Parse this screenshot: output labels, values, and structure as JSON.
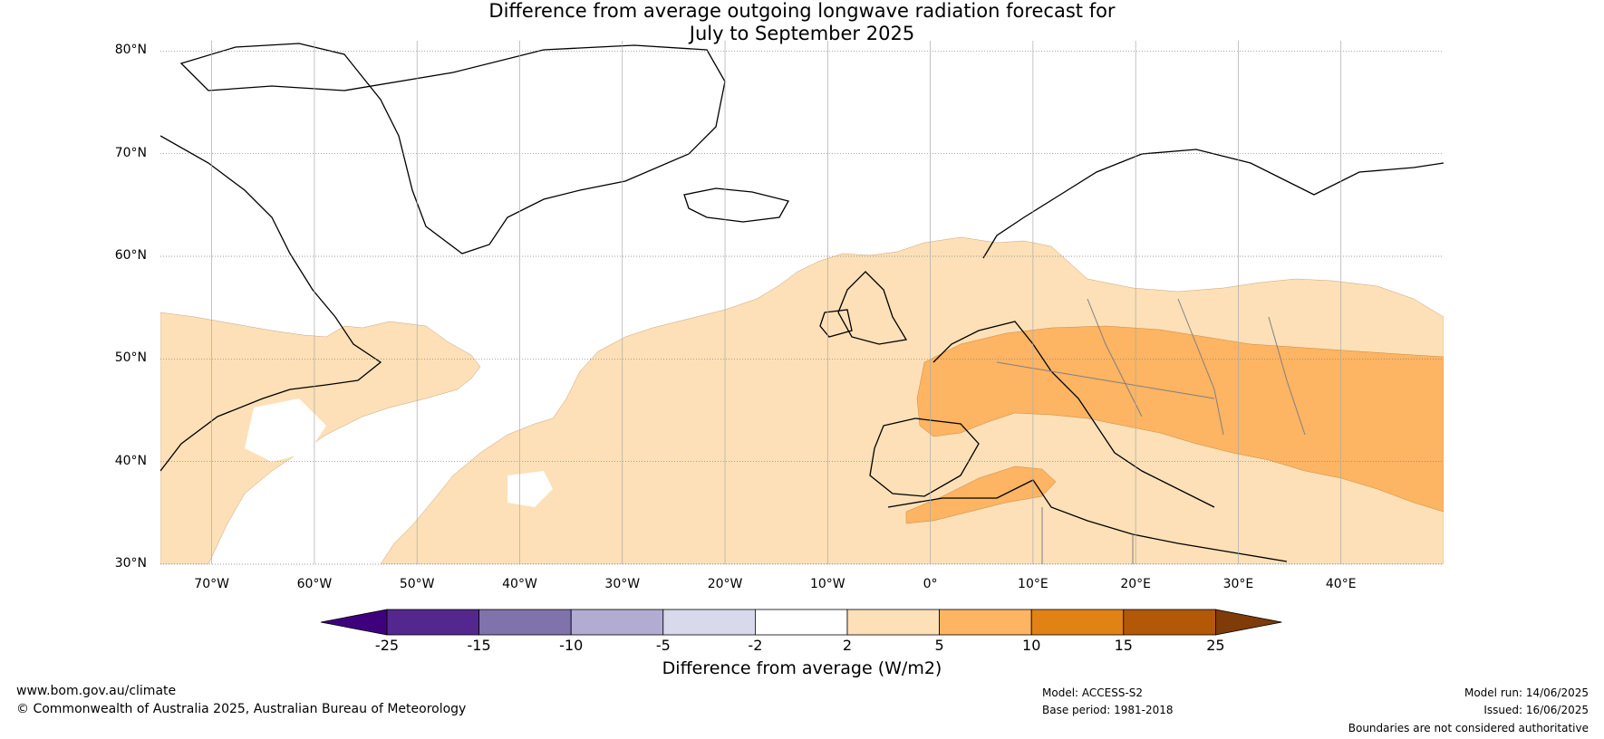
{
  "title": {
    "line1": "Difference from average outgoing longwave radiation forecast for",
    "line2": "July to September 2025"
  },
  "map": {
    "lat_labels": [
      "80°N",
      "70°N",
      "60°N",
      "50°N",
      "40°N",
      "30°N"
    ],
    "lon_labels": [
      "70°W",
      "60°W",
      "50°W",
      "40°W",
      "30°W",
      "20°W",
      "10°W",
      "0°",
      "10°E",
      "20°E",
      "30°E",
      "40°E"
    ],
    "extent": {
      "lon_min": -75,
      "lon_max": 50,
      "lat_min": 30,
      "lat_max": 81
    },
    "colors": {
      "coast": "#000000",
      "border": "#808080",
      "grid": "#999999",
      "band_2_5": "#fde0b7",
      "band_5_10": "#fdb463"
    }
  },
  "colorbar": {
    "label": "Difference from average (W/m2)",
    "ticks": [
      "-25",
      "-15",
      "-10",
      "-5",
      "-2",
      "2",
      "5",
      "10",
      "15",
      "25"
    ],
    "colors": [
      "#3f007d",
      "#54278f",
      "#8073ac",
      "#b2abd2",
      "#d8daeb",
      "#ffffff",
      "#fde0b7",
      "#fdb463",
      "#e08214",
      "#b35806",
      "#7f3b08"
    ]
  },
  "footer": {
    "website": "www.bom.gov.au/climate",
    "copyright": "© Commonwealth of Australia 2025, Australian Bureau of Meteorology",
    "model": "Model: ACCESS-S2",
    "base_period": "Base period: 1981-2018",
    "model_run": "Model run: 14/06/2025",
    "issued": "Issued: 16/06/2025",
    "disclaimer": "Boundaries are not considered authoritative"
  }
}
